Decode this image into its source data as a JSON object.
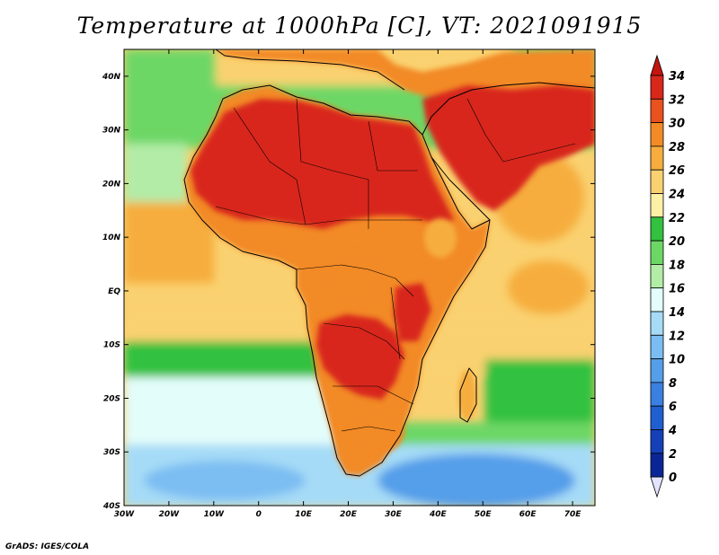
{
  "title": "Temperature at 1000hPa [C], VT: 2021091915",
  "credit": "GrADS: IGES/COLA",
  "map": {
    "projection": "latlon",
    "lon_range": [
      -30,
      75
    ],
    "lat_range": [
      -40,
      45
    ],
    "x_ticks": [
      {
        "lon": -30,
        "label": "30W"
      },
      {
        "lon": -20,
        "label": "20W"
      },
      {
        "lon": -10,
        "label": "10W"
      },
      {
        "lon": 0,
        "label": "0"
      },
      {
        "lon": 10,
        "label": "10E"
      },
      {
        "lon": 20,
        "label": "20E"
      },
      {
        "lon": 30,
        "label": "30E"
      },
      {
        "lon": 40,
        "label": "40E"
      },
      {
        "lon": 50,
        "label": "50E"
      },
      {
        "lon": 60,
        "label": "60E"
      },
      {
        "lon": 70,
        "label": "70E"
      }
    ],
    "y_ticks": [
      {
        "lat": 40,
        "label": "40N"
      },
      {
        "lat": 30,
        "label": "30N"
      },
      {
        "lat": 20,
        "label": "20N"
      },
      {
        "lat": 10,
        "label": "10N"
      },
      {
        "lat": 0,
        "label": "EQ"
      },
      {
        "lat": -10,
        "label": "10S"
      },
      {
        "lat": -20,
        "label": "20S"
      },
      {
        "lat": -30,
        "label": "30S"
      },
      {
        "lat": -40,
        "label": "40S"
      }
    ]
  },
  "colorbar": {
    "labels": [
      "34",
      "32",
      "30",
      "28",
      "26",
      "24",
      "22",
      "20",
      "18",
      "16",
      "14",
      "12",
      "10",
      "8",
      "6",
      "4",
      "2",
      "0"
    ],
    "bins": [
      {
        "lower": 32,
        "color": "#d8271b"
      },
      {
        "lower": 30,
        "color": "#e9511f"
      },
      {
        "lower": 28,
        "color": "#f28a25"
      },
      {
        "lower": 26,
        "color": "#f6ad3d"
      },
      {
        "lower": 24,
        "color": "#fad170"
      },
      {
        "lower": 22,
        "color": "#fdf0a6"
      },
      {
        "lower": 20,
        "color": "#33c13f"
      },
      {
        "lower": 18,
        "color": "#6dd766"
      },
      {
        "lower": 16,
        "color": "#b2eca7"
      },
      {
        "lower": 14,
        "color": "#e3fdfb"
      },
      {
        "lower": 12,
        "color": "#a6dbf7"
      },
      {
        "lower": 10,
        "color": "#7bbdf2"
      },
      {
        "lower": 8,
        "color": "#559ee9"
      },
      {
        "lower": 6,
        "color": "#3b80e0"
      },
      {
        "lower": 4,
        "color": "#1f5fd0"
      },
      {
        "lower": 2,
        "color": "#1540b8"
      },
      {
        "lower": 0,
        "color": "#0c2596"
      }
    ],
    "over_color": "#c4150f",
    "under_color": "#e3e3ff"
  },
  "colors": {
    "land_north_hot": "#d8271b",
    "ocean_tropical": "#fad170",
    "ocean_warm": "#f6ad3d",
    "ocean_mid": "#33c13f",
    "ocean_south_cool": "#a6dbf7",
    "ocean_far_south": "#3b80e0",
    "mediterranean": "#fdf0a6"
  }
}
